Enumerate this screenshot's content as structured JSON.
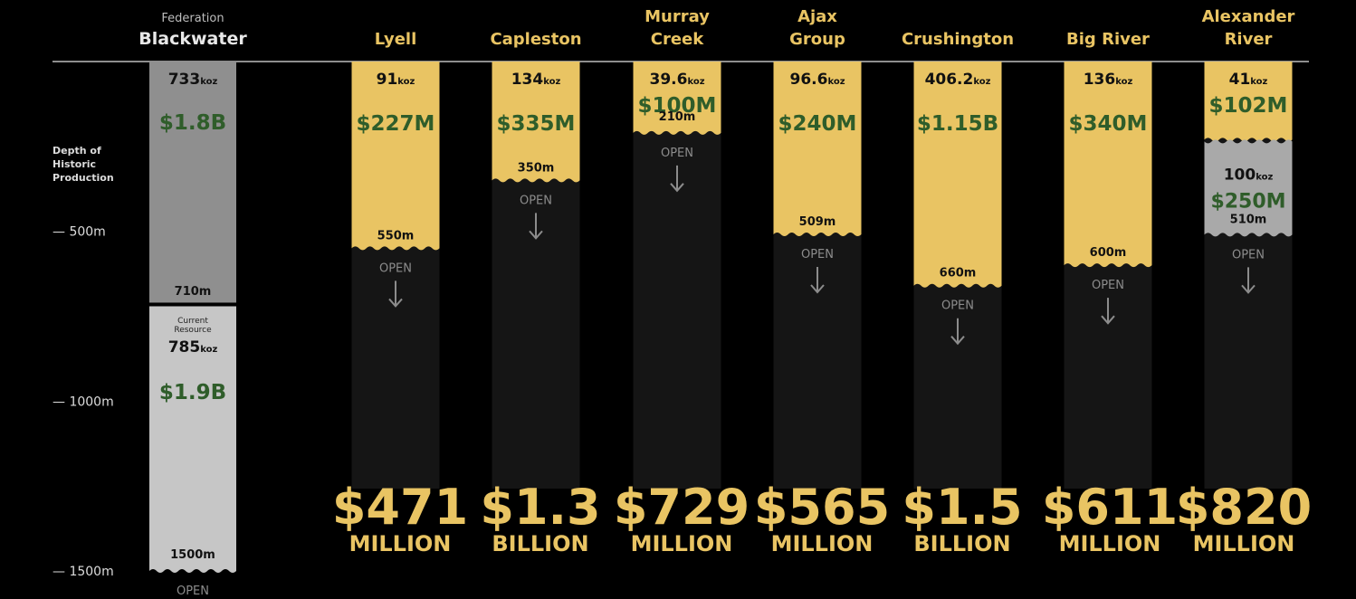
{
  "colors": {
    "background": "#000000",
    "gold": "#e9c463",
    "green_value": "#2f5d2a",
    "column_dark": "#151515",
    "historic_grey": "#8f8f8f",
    "resource_light_grey": "#c6c6c6",
    "additional_grey": "#a9a9a9",
    "axis_line": "#bdbdbd"
  },
  "chart_data": {
    "type": "bar",
    "axis": {
      "title": "Depth of Historic Production",
      "ticks": [
        {
          "label": "— 500m",
          "value": 500
        },
        {
          "label": "— 1000m",
          "value": 1000
        },
        {
          "label": "— 1500m",
          "value": 1500
        }
      ],
      "ylim": [
        0,
        1500
      ],
      "direction": "down"
    },
    "reference": {
      "name_small": "Federation",
      "name": "Blackwater",
      "historic": {
        "koz": "733",
        "unit": "koz",
        "value": "$1.8B",
        "depth_m": 710,
        "depth_label": "710m"
      },
      "resource": {
        "label_line1": "Current",
        "label_line2": "Resource",
        "koz": "785",
        "unit": "koz",
        "value": "$1.9B",
        "depth_m": 1500,
        "depth_label": "1500m"
      },
      "open_label": "OPEN"
    },
    "mines": [
      {
        "name_line1": "",
        "name_line2": "Lyell",
        "koz": "91",
        "unit": "koz",
        "value": "$227M",
        "depth_m": 550,
        "depth_label": "550m",
        "open_label": "OPEN",
        "total": "$471",
        "total_unit": "MILLION"
      },
      {
        "name_line1": "",
        "name_line2": "Capleston",
        "koz": "134",
        "unit": "koz",
        "value": "$335M",
        "depth_m": 350,
        "depth_label": "350m",
        "open_label": "OPEN",
        "total": "$1.3",
        "total_unit": "BILLION"
      },
      {
        "name_line1": "Murray",
        "name_line2": "Creek",
        "koz": "39.6",
        "unit": "koz",
        "value": "$100M",
        "depth_m": 210,
        "depth_label": "210m",
        "open_label": "OPEN",
        "total": "$729",
        "total_unit": "MILLION"
      },
      {
        "name_line1": "Ajax",
        "name_line2": "Group",
        "koz": "96.6",
        "unit": "koz",
        "value": "$240M",
        "depth_m": 509,
        "depth_label": "509m",
        "open_label": "OPEN",
        "total": "$565",
        "total_unit": "MILLION"
      },
      {
        "name_line1": "",
        "name_line2": "Crushington",
        "koz": "406.2",
        "unit": "koz",
        "value": "$1.15B",
        "depth_m": 660,
        "depth_label": "660m",
        "open_label": "OPEN",
        "total": "$1.5",
        "total_unit": "BILLION"
      },
      {
        "name_line1": "",
        "name_line2": "Big River",
        "koz": "136",
        "unit": "koz",
        "value": "$340M",
        "depth_m": 600,
        "depth_label": "600m",
        "open_label": "OPEN",
        "total": "$611",
        "total_unit": "MILLION"
      },
      {
        "name_line1": "Alexander",
        "name_line2": "River",
        "koz": "41",
        "unit": "koz",
        "value": "$102M",
        "depth_m": 230,
        "extra": {
          "koz": "100",
          "unit": "koz",
          "value": "$250M",
          "depth_m": 510,
          "depth_label": "510m"
        },
        "open_label": "OPEN",
        "total": "$820",
        "total_unit": "MILLION"
      }
    ]
  }
}
